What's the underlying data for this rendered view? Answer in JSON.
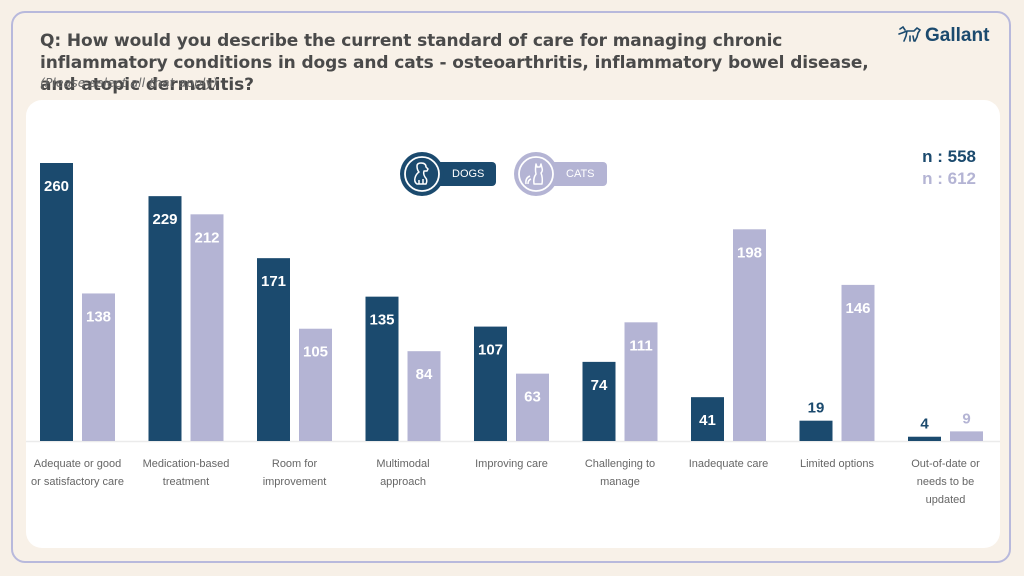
{
  "header": {
    "title": "Q: How would you describe the current standard of care for managing chronic inflammatory conditions in dogs and cats - osteoarthritis, inflammatory bowel disease, and atopic dermatitis?",
    "subtitle": "(Please select all that apply)",
    "logo_text": "Gallant",
    "logo_icon": "dog-icon"
  },
  "legend": {
    "dogs": {
      "label": "DOGS",
      "icon": "dog-icon",
      "color": "#1b4a6e"
    },
    "cats": {
      "label": "CATS",
      "icon": "cat-icon",
      "color": "#b4b4d4"
    }
  },
  "sample_sizes": {
    "dogs": "n : 558",
    "cats": "n : 612"
  },
  "colors": {
    "dogs": "#1b4a6e",
    "cats": "#b4b4d4",
    "label_text": "#666666",
    "title_text": "#4a4a4a"
  },
  "chart_data": {
    "type": "bar",
    "title": "Q: How would you describe the current standard of care for managing chronic inflammatory conditions in dogs and cats - osteoarthritis, inflammatory bowel disease, and atopic dermatitis?",
    "subtitle": "(Please select all that apply)",
    "xlabel": "",
    "ylabel": "",
    "ylim": [
      0,
      260
    ],
    "grid": false,
    "legend_position": "top-center",
    "categories": [
      "Adequate or good or satisfactory care",
      "Medication-based treatment",
      "Room for improvement",
      "Multimodal approach",
      "Improving care",
      "Challenging to manage",
      "Inadequate care",
      "Limited options",
      "Out-of-date or needs to be updated"
    ],
    "category_lines": [
      [
        "Adequate or good",
        "or satisfactory care"
      ],
      [
        "Medication-based",
        "treatment"
      ],
      [
        "Room for",
        "improvement"
      ],
      [
        "Multimodal",
        "approach"
      ],
      [
        "Improving care"
      ],
      [
        "Challenging to",
        "manage"
      ],
      [
        "Inadequate care"
      ],
      [
        "Limited options"
      ],
      [
        "Out-of-date or",
        "needs to be",
        "updated"
      ]
    ],
    "series": [
      {
        "name": "Dogs",
        "n": 558,
        "values": [
          260,
          229,
          171,
          135,
          107,
          74,
          41,
          19,
          4
        ]
      },
      {
        "name": "Cats",
        "n": 612,
        "values": [
          138,
          212,
          105,
          84,
          63,
          111,
          198,
          146,
          9
        ]
      }
    ]
  }
}
